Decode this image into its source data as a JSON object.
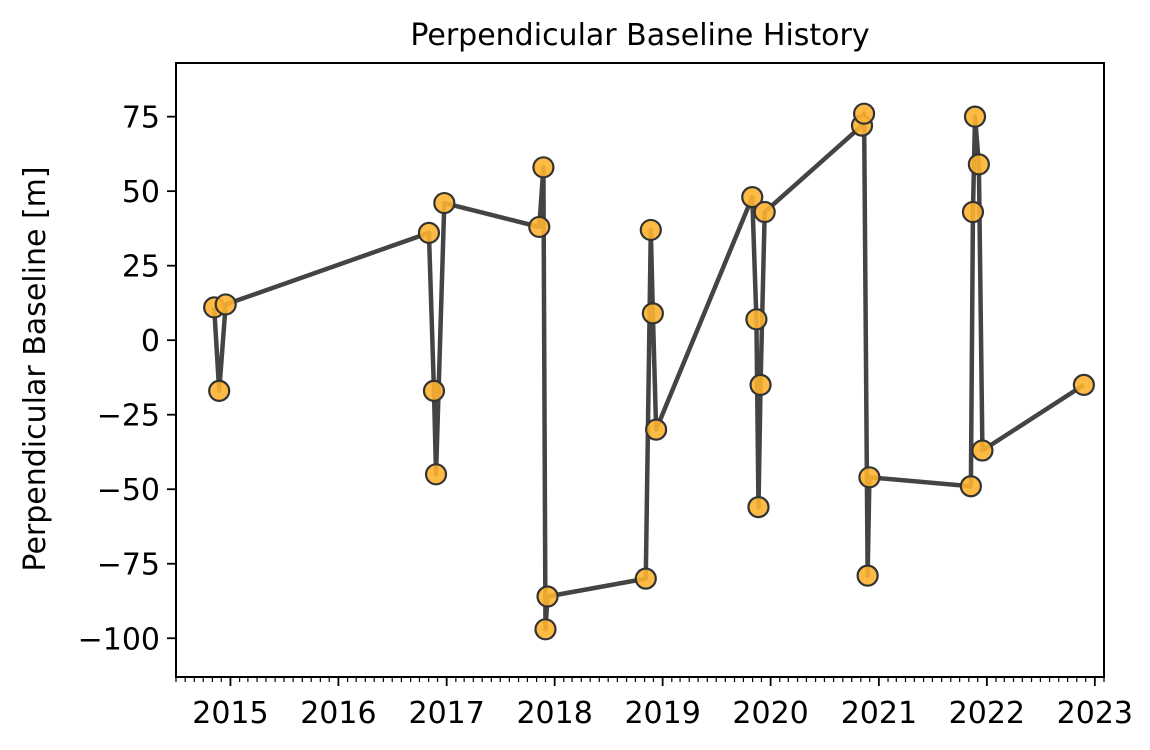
{
  "chart_data": {
    "type": "line",
    "title": "Perpendicular Baseline History",
    "xlabel": "",
    "ylabel": "Perpendicular Baseline [m]",
    "xlim": [
      "2014-07-01",
      "2023-02-01"
    ],
    "ylim": [
      -113,
      93
    ],
    "xticks": [
      "2015",
      "2016",
      "2017",
      "2018",
      "2019",
      "2020",
      "2021",
      "2022",
      "2023"
    ],
    "yticks": [
      75,
      50,
      25,
      0,
      -25,
      -50,
      -75,
      -100
    ],
    "ytick_labels": [
      "75",
      "50",
      "25",
      "0",
      "−25",
      "−50",
      "−75",
      "−100"
    ],
    "line_color": "#444444",
    "marker_color": "#fdb431",
    "marker_edge_color": "#333333",
    "grid": false,
    "x": [
      "2014-11-07",
      "2014-11-24",
      "2014-12-16",
      "2016-11-02",
      "2016-11-19",
      "2016-11-26",
      "2016-12-24",
      "2017-11-10",
      "2017-11-24",
      "2017-12-01",
      "2017-12-08",
      "2018-11-05",
      "2018-11-22",
      "2018-11-29",
      "2018-12-10",
      "2019-10-31",
      "2019-11-14",
      "2019-11-21",
      "2019-11-28",
      "2019-12-12",
      "2020-11-05",
      "2020-11-12",
      "2020-11-24",
      "2020-11-30",
      "2021-11-08",
      "2021-11-15",
      "2021-11-22",
      "2021-12-05",
      "2022-11-25"
    ],
    "y": [
      11,
      -17,
      12,
      36,
      -17,
      -45,
      46,
      38,
      58,
      -97,
      -86,
      -80,
      37,
      9,
      -30,
      48,
      7,
      -56,
      -15,
      43,
      72,
      76,
      -79,
      -46,
      -49,
      43,
      75,
      59,
      -15
    ],
    "x_extra": [
      "2021-12-17"
    ],
    "y_extra": [
      -37
    ]
  }
}
